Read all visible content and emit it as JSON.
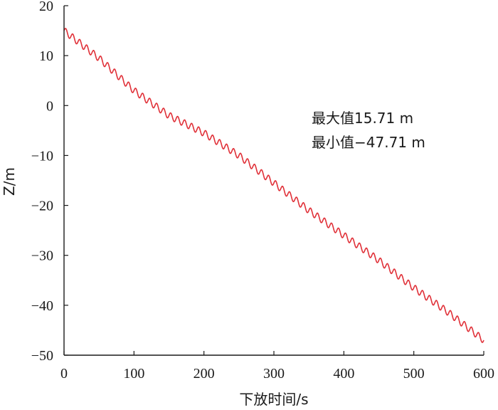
{
  "chart_data": {
    "type": "line",
    "title": "",
    "xlabel": "下放时间/s",
    "ylabel": "Z/m",
    "xlim": [
      0,
      600
    ],
    "ylim": [
      -50,
      20
    ],
    "xticks": [
      0,
      100,
      200,
      300,
      400,
      500,
      600
    ],
    "yticks": [
      20,
      10,
      0,
      -10,
      -20,
      -30,
      -40,
      -50
    ],
    "xtick_labels": [
      "0",
      "100",
      "200",
      "300",
      "400",
      "500",
      "600"
    ],
    "ytick_labels": [
      "20",
      "10",
      "0",
      "−10",
      "−20",
      "−30",
      "−40",
      "−50"
    ],
    "grid": false,
    "series": [
      {
        "color": "#e03038",
        "x": [
          0,
          50,
          100,
          150,
          200,
          250,
          300,
          350,
          400,
          450,
          500,
          550,
          600
        ],
        "y": [
          15.0,
          9.5,
          3.0,
          -2.0,
          -5.5,
          -10.0,
          -15.5,
          -21.0,
          -26.0,
          -31.0,
          -36.5,
          -41.5,
          -47.0
        ],
        "oscillation_period_s": 10,
        "oscillation_amplitude_m": 0.7
      }
    ],
    "annotations": [
      {
        "text": "最大值15.71 m"
      },
      {
        "text": "最小值−47.71 m"
      }
    ]
  }
}
